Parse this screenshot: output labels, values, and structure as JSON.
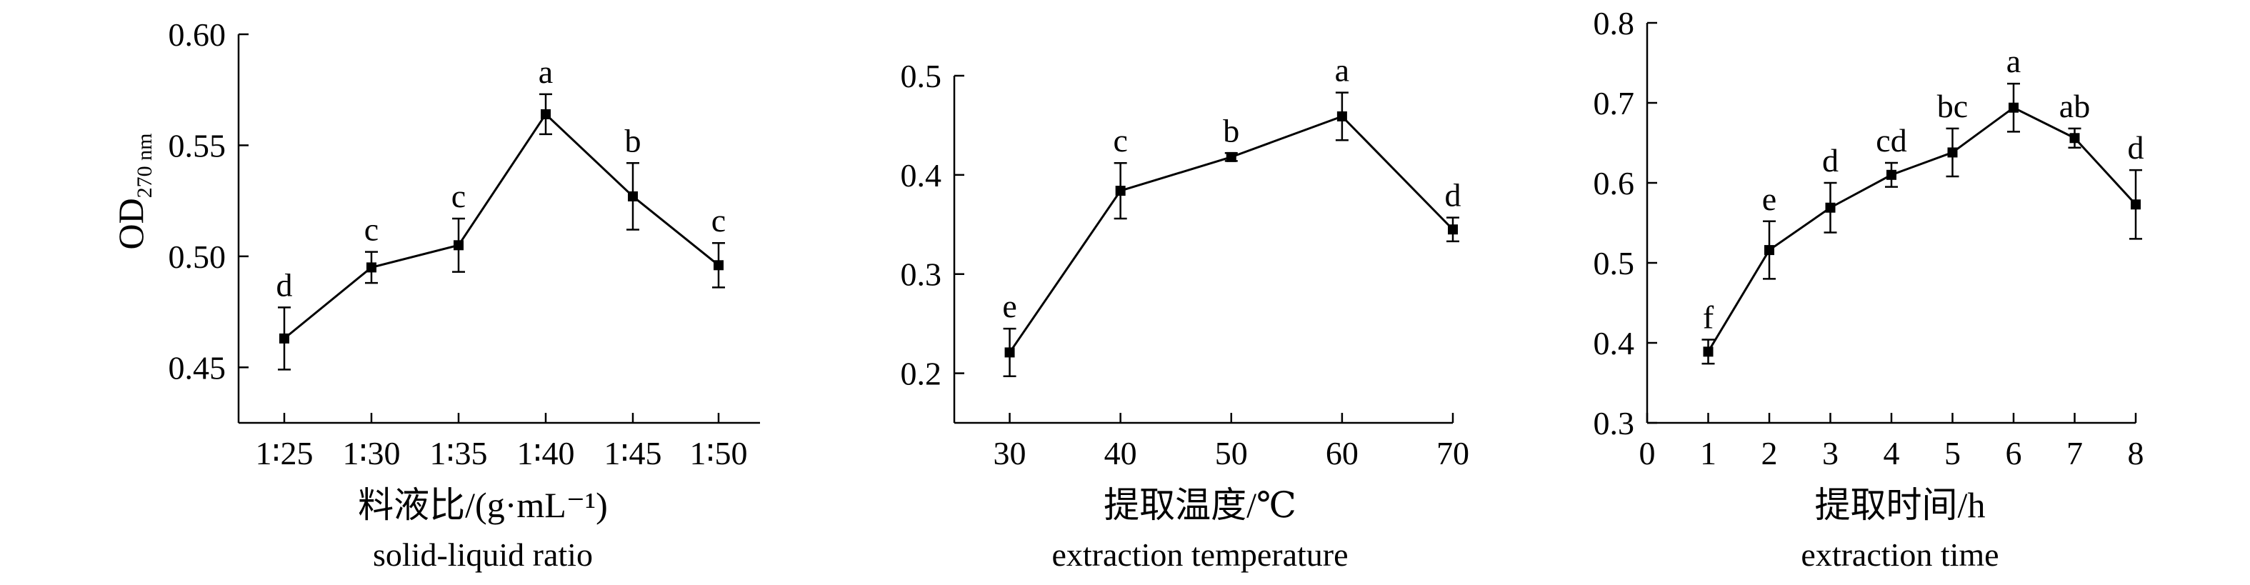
{
  "chart_data": [
    {
      "type": "line",
      "categories": [
        "1∶25",
        "1∶30",
        "1∶35",
        "1∶40",
        "1∶45",
        "1∶50"
      ],
      "values": [
        0.463,
        0.495,
        0.505,
        0.564,
        0.527,
        0.496
      ],
      "errors": [
        0.014,
        0.007,
        0.012,
        0.009,
        0.015,
        0.01
      ],
      "letters": [
        "d",
        "c",
        "c",
        "a",
        "b",
        "c"
      ],
      "ylim": [
        0.425,
        0.6
      ],
      "yticks": [
        0.45,
        0.5,
        0.55,
        0.6
      ],
      "ytick_labels": [
        "0.45",
        "0.50",
        "0.55",
        "0.60"
      ],
      "ylabel_main": "OD",
      "ylabel_sub": "270 nm",
      "xlabel_cn": "料液比/(g·mL⁻¹)",
      "xlabel_en": "solid-liquid ratio",
      "grid": false
    },
    {
      "type": "line",
      "x": [
        30,
        40,
        50,
        60,
        70
      ],
      "values": [
        0.221,
        0.384,
        0.418,
        0.459,
        0.345
      ],
      "errors": [
        0.024,
        0.028,
        0.004,
        0.024,
        0.012
      ],
      "letters": [
        "e",
        "c",
        "b",
        "a",
        "d"
      ],
      "xlim": [
        25,
        70
      ],
      "xticks": [
        30,
        40,
        50,
        60,
        70
      ],
      "ylim": [
        0.15,
        0.5
      ],
      "yticks": [
        0.2,
        0.3,
        0.4,
        0.5
      ],
      "ytick_labels": [
        "0.2",
        "0.3",
        "0.4",
        "0.5"
      ],
      "xlabel_cn": "提取温度/℃",
      "xlabel_en": "extraction temperature",
      "grid": false
    },
    {
      "type": "line",
      "x": [
        1,
        2,
        3,
        4,
        5,
        6,
        7,
        8
      ],
      "values": [
        0.389,
        0.516,
        0.569,
        0.61,
        0.638,
        0.694,
        0.656,
        0.573
      ],
      "errors": [
        0.015,
        0.036,
        0.031,
        0.015,
        0.03,
        0.03,
        0.012,
        0.043
      ],
      "letters": [
        "f",
        "e",
        "d",
        "cd",
        "bc",
        "a",
        "ab",
        "d"
      ],
      "xlim": [
        0,
        8
      ],
      "xticks": [
        0,
        1,
        2,
        3,
        4,
        5,
        6,
        7,
        8
      ],
      "ylim": [
        0.3,
        0.8
      ],
      "yticks": [
        0.3,
        0.4,
        0.5,
        0.6,
        0.7,
        0.8
      ],
      "ytick_labels": [
        "0.3",
        "0.4",
        "0.5",
        "0.6",
        "0.7",
        "0.8"
      ],
      "xlabel_cn": "提取时间/h",
      "xlabel_en": "extraction time",
      "grid": false
    }
  ]
}
